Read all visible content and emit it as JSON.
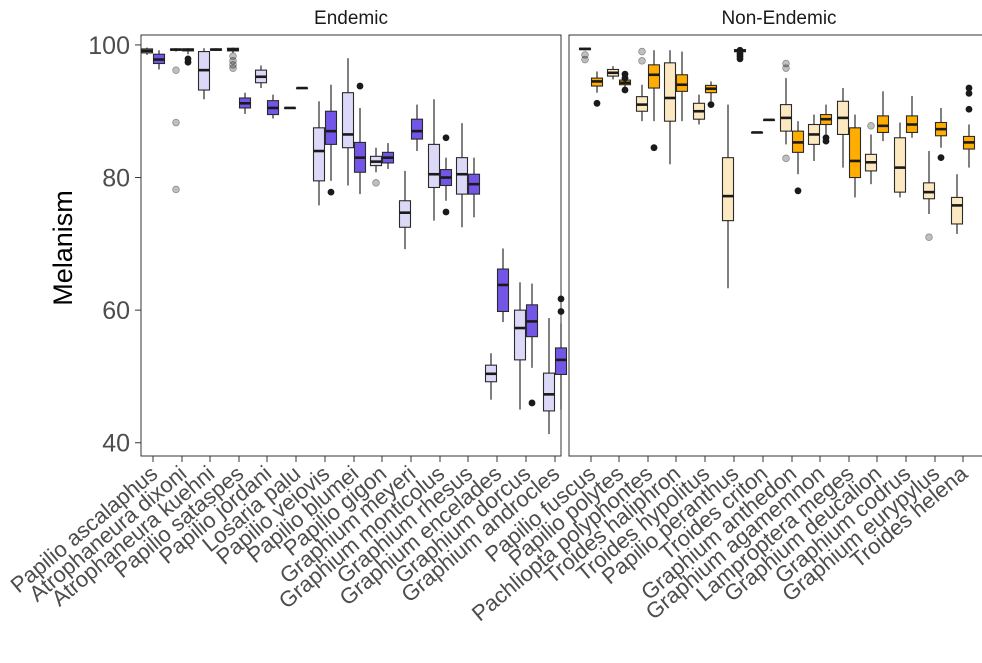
{
  "chart_data": {
    "type": "boxplot",
    "ylabel": "Melanism",
    "xlabel": "",
    "ylim": [
      38,
      101.5
    ],
    "y_ticks": [
      40,
      60,
      80,
      100
    ],
    "grid": false,
    "legend": "none",
    "panel_titles": [
      "Endemic",
      "Non-Endemic"
    ],
    "colors": {
      "endemic_light": "#dcd9f8",
      "endemic_dark": "#7356e8",
      "nonendemic_light": "#fde9c1",
      "nonendemic_dark": "#ffad00"
    },
    "panels": [
      {
        "title": "Endemic",
        "categories": [
          "Papilio ascalaphus",
          "Atrophaneura dixoni",
          "Atrophaneura kuehni",
          "Papilio sataspes",
          "Papilio jordani",
          "Losaria palu",
          "Papilio veiovis",
          "Papilio blumei",
          "Papilio gigon",
          "Graphium meyeri",
          "Graphium monticolus",
          "Graphium rhesus",
          "Graphium encelades",
          "Graphium dorcus",
          "Graphium androcles"
        ],
        "boxes": [
          {
            "category_index": 0,
            "group": "light",
            "q1": 98.8,
            "median": 99.1,
            "q3": 99.4,
            "whisker_low": 98.5,
            "whisker_high": 99.6,
            "outliers": []
          },
          {
            "category_index": 0,
            "group": "dark",
            "q1": 97.2,
            "median": 97.8,
            "q3": 98.6,
            "whisker_low": 96.3,
            "whisker_high": 99.2,
            "outliers": []
          },
          {
            "category_index": 1,
            "group": "light",
            "q1": 99.2,
            "median": 99.3,
            "q3": 99.4,
            "whisker_low": 99.0,
            "whisker_high": 99.5,
            "outliers": [
              96.2,
              88.3,
              78.2
            ]
          },
          {
            "category_index": 1,
            "group": "dark",
            "q1": 99.1,
            "median": 99.3,
            "q3": 99.4,
            "whisker_low": 98.6,
            "whisker_high": 99.5,
            "outliers": [
              97.9,
              97.4
            ]
          },
          {
            "category_index": 2,
            "group": "light",
            "q1": 93.2,
            "median": 96.2,
            "q3": 99.0,
            "whisker_low": 91.8,
            "whisker_high": 99.5,
            "outliers": []
          },
          {
            "category_index": 2,
            "group": "dark",
            "q1": 99.2,
            "median": 99.3,
            "q3": 99.4,
            "whisker_low": 99.1,
            "whisker_high": 99.5,
            "outliers": []
          },
          {
            "category_index": 3,
            "group": "light",
            "q1": 99.1,
            "median": 99.3,
            "q3": 99.5,
            "whisker_low": 98.8,
            "whisker_high": 99.6,
            "outliers": [
              98.3,
              97.6,
              97.0,
              96.5
            ]
          },
          {
            "category_index": 3,
            "group": "dark",
            "q1": 90.5,
            "median": 91.2,
            "q3": 92.0,
            "whisker_low": 89.6,
            "whisker_high": 92.8,
            "outliers": []
          },
          {
            "category_index": 4,
            "group": "light",
            "q1": 94.3,
            "median": 95.2,
            "q3": 96.2,
            "whisker_low": 93.5,
            "whisker_high": 96.9,
            "outliers": []
          },
          {
            "category_index": 4,
            "group": "dark",
            "q1": 89.5,
            "median": 90.5,
            "q3": 91.6,
            "whisker_low": 88.9,
            "whisker_high": 92.5,
            "outliers": []
          },
          {
            "category_index": 5,
            "group": "light",
            "q1": 90.5,
            "median": 90.5,
            "q3": 90.5,
            "whisker_low": 90.5,
            "whisker_high": 90.5,
            "outliers": []
          },
          {
            "category_index": 5,
            "group": "dark",
            "q1": 93.5,
            "median": 93.5,
            "q3": 93.5,
            "whisker_low": 93.5,
            "whisker_high": 93.5,
            "outliers": []
          },
          {
            "category_index": 6,
            "group": "light",
            "q1": 79.5,
            "median": 84.0,
            "q3": 87.5,
            "whisker_low": 75.8,
            "whisker_high": 91.5,
            "outliers": []
          },
          {
            "category_index": 6,
            "group": "dark",
            "q1": 85.0,
            "median": 87.0,
            "q3": 90.0,
            "whisker_low": 79.5,
            "whisker_high": 94.0,
            "outliers": [
              77.8
            ]
          },
          {
            "category_index": 7,
            "group": "light",
            "q1": 84.5,
            "median": 86.5,
            "q3": 92.8,
            "whisker_low": 78.8,
            "whisker_high": 98.0,
            "outliers": []
          },
          {
            "category_index": 7,
            "group": "dark",
            "q1": 80.8,
            "median": 83.0,
            "q3": 85.3,
            "whisker_low": 77.5,
            "whisker_high": 90.5,
            "outliers": [
              93.8
            ]
          },
          {
            "category_index": 8,
            "group": "light",
            "q1": 81.8,
            "median": 82.4,
            "q3": 83.2,
            "whisker_low": 80.8,
            "whisker_high": 84.5,
            "outliers": [
              79.2
            ]
          },
          {
            "category_index": 8,
            "group": "dark",
            "q1": 82.2,
            "median": 83.0,
            "q3": 83.8,
            "whisker_low": 81.3,
            "whisker_high": 85.2,
            "outliers": []
          },
          {
            "category_index": 9,
            "group": "light",
            "q1": 72.5,
            "median": 74.7,
            "q3": 76.5,
            "whisker_low": 69.2,
            "whisker_high": 81.0,
            "outliers": []
          },
          {
            "category_index": 9,
            "group": "dark",
            "q1": 85.8,
            "median": 87.0,
            "q3": 88.8,
            "whisker_low": 84.0,
            "whisker_high": 91.0,
            "outliers": []
          },
          {
            "category_index": 10,
            "group": "light",
            "q1": 78.5,
            "median": 80.5,
            "q3": 85.0,
            "whisker_low": 73.5,
            "whisker_high": 91.8,
            "outliers": []
          },
          {
            "category_index": 10,
            "group": "dark",
            "q1": 78.8,
            "median": 80.0,
            "q3": 81.2,
            "whisker_low": 76.5,
            "whisker_high": 83.0,
            "outliers": [
              86.0,
              74.8
            ]
          },
          {
            "category_index": 11,
            "group": "light",
            "q1": 77.5,
            "median": 80.5,
            "q3": 83.0,
            "whisker_low": 72.5,
            "whisker_high": 88.2,
            "outliers": []
          },
          {
            "category_index": 11,
            "group": "dark",
            "q1": 77.5,
            "median": 79.0,
            "q3": 80.5,
            "whisker_low": 74.0,
            "whisker_high": 83.0,
            "outliers": []
          },
          {
            "category_index": 12,
            "group": "light",
            "q1": 49.2,
            "median": 50.4,
            "q3": 51.7,
            "whisker_low": 46.5,
            "whisker_high": 53.5,
            "outliers": []
          },
          {
            "category_index": 12,
            "group": "dark",
            "q1": 59.8,
            "median": 63.8,
            "q3": 66.2,
            "whisker_low": 58.2,
            "whisker_high": 69.3,
            "outliers": []
          },
          {
            "category_index": 13,
            "group": "light",
            "q1": 52.5,
            "median": 57.3,
            "q3": 60.0,
            "whisker_low": 45.0,
            "whisker_high": 64.2,
            "outliers": []
          },
          {
            "category_index": 13,
            "group": "dark",
            "q1": 56.0,
            "median": 58.3,
            "q3": 60.8,
            "whisker_low": 51.3,
            "whisker_high": 64.0,
            "outliers": [
              46.0
            ]
          },
          {
            "category_index": 14,
            "group": "light",
            "q1": 44.8,
            "median": 47.3,
            "q3": 50.5,
            "whisker_low": 41.3,
            "whisker_high": 58.8,
            "outliers": []
          },
          {
            "category_index": 14,
            "group": "dark",
            "q1": 50.3,
            "median": 52.5,
            "q3": 54.3,
            "whisker_low": 45.0,
            "whisker_high": 58.0,
            "outliers": [
              61.7,
              59.8
            ]
          }
        ]
      },
      {
        "title": "Non-Endemic",
        "categories": [
          "Papilio fuscus",
          "Papilio polytes",
          "Pachliopta polyphontes",
          "Troides haliphron",
          "Troides hypolitus",
          "Papilio peranthus",
          "Troides criton",
          "Graphium anthedon",
          "Graphium agamemnon",
          "Lamproptera meges",
          "Graphium deucalion",
          "Graphium codrus",
          "Graphium eurypylus",
          "Troides helena"
        ],
        "boxes": [
          {
            "category_index": 0,
            "group": "light",
            "q1": 99.3,
            "median": 99.4,
            "q3": 99.5,
            "whisker_low": 99.2,
            "whisker_high": 99.6,
            "outliers": [
              98.5,
              97.8
            ]
          },
          {
            "category_index": 0,
            "group": "dark",
            "q1": 93.8,
            "median": 94.5,
            "q3": 95.0,
            "whisker_low": 92.8,
            "whisker_high": 96.0,
            "outliers": [
              91.2
            ]
          },
          {
            "category_index": 1,
            "group": "light",
            "q1": 95.3,
            "median": 95.8,
            "q3": 96.3,
            "whisker_low": 94.8,
            "whisker_high": 96.8,
            "outliers": []
          },
          {
            "category_index": 1,
            "group": "dark",
            "q1": 94.0,
            "median": 94.3,
            "q3": 94.7,
            "whisker_low": 93.5,
            "whisker_high": 95.0,
            "outliers": [
              95.6,
              95.0,
              93.2
            ]
          },
          {
            "category_index": 2,
            "group": "light",
            "q1": 90.0,
            "median": 91.0,
            "q3": 92.2,
            "whisker_low": 88.5,
            "whisker_high": 94.0,
            "outliers": [
              99.0,
              97.6
            ]
          },
          {
            "category_index": 2,
            "group": "dark",
            "q1": 93.5,
            "median": 95.5,
            "q3": 97.0,
            "whisker_low": 88.5,
            "whisker_high": 99.2,
            "outliers": [
              84.5
            ]
          },
          {
            "category_index": 3,
            "group": "light",
            "q1": 88.5,
            "median": 92.0,
            "q3": 97.3,
            "whisker_low": 82.0,
            "whisker_high": 99.2,
            "outliers": []
          },
          {
            "category_index": 3,
            "group": "dark",
            "q1": 93.0,
            "median": 94.0,
            "q3": 95.5,
            "whisker_low": 88.5,
            "whisker_high": 99.0,
            "outliers": []
          },
          {
            "category_index": 4,
            "group": "light",
            "q1": 88.8,
            "median": 90.0,
            "q3": 91.2,
            "whisker_low": 88.0,
            "whisker_high": 92.5,
            "outliers": []
          },
          {
            "category_index": 4,
            "group": "dark",
            "q1": 92.8,
            "median": 93.4,
            "q3": 93.9,
            "whisker_low": 91.5,
            "whisker_high": 94.5,
            "outliers": [
              91.0
            ]
          },
          {
            "category_index": 5,
            "group": "light",
            "q1": 73.5,
            "median": 77.2,
            "q3": 83.0,
            "whisker_low": 63.3,
            "whisker_high": 91.0,
            "outliers": []
          },
          {
            "category_index": 5,
            "group": "dark",
            "q1": 99.0,
            "median": 99.1,
            "q3": 99.3,
            "whisker_low": 98.8,
            "whisker_high": 99.4,
            "outliers": [
              99.2,
              98.7,
              98.3,
              97.9
            ]
          },
          {
            "category_index": 6,
            "group": "light",
            "q1": 86.8,
            "median": 86.8,
            "q3": 86.8,
            "whisker_low": 86.8,
            "whisker_high": 86.8,
            "outliers": []
          },
          {
            "category_index": 6,
            "group": "dark",
            "q1": 88.7,
            "median": 88.7,
            "q3": 88.7,
            "whisker_low": 88.7,
            "whisker_high": 88.7,
            "outliers": []
          },
          {
            "category_index": 7,
            "group": "light",
            "q1": 87.0,
            "median": 89.0,
            "q3": 91.0,
            "whisker_low": 85.0,
            "whisker_high": 95.0,
            "outliers": [
              97.2,
              96.5,
              82.9
            ]
          },
          {
            "category_index": 7,
            "group": "dark",
            "q1": 83.8,
            "median": 85.3,
            "q3": 87.0,
            "whisker_low": 80.5,
            "whisker_high": 88.5,
            "outliers": [
              78.0
            ]
          },
          {
            "category_index": 8,
            "group": "light",
            "q1": 85.0,
            "median": 86.5,
            "q3": 88.0,
            "whisker_low": 82.5,
            "whisker_high": 89.5,
            "outliers": []
          },
          {
            "category_index": 8,
            "group": "dark",
            "q1": 88.0,
            "median": 88.8,
            "q3": 89.5,
            "whisker_low": 86.5,
            "whisker_high": 91.0,
            "outliers": [
              86.0,
              85.5
            ]
          },
          {
            "category_index": 9,
            "group": "light",
            "q1": 86.5,
            "median": 89.0,
            "q3": 91.5,
            "whisker_low": 81.5,
            "whisker_high": 93.5,
            "outliers": []
          },
          {
            "category_index": 9,
            "group": "dark",
            "q1": 80.0,
            "median": 82.5,
            "q3": 87.5,
            "whisker_low": 77.0,
            "whisker_high": 89.5,
            "outliers": []
          },
          {
            "category_index": 10,
            "group": "light",
            "q1": 81.0,
            "median": 82.3,
            "q3": 83.5,
            "whisker_low": 79.0,
            "whisker_high": 86.5,
            "outliers": [
              87.8
            ]
          },
          {
            "category_index": 10,
            "group": "dark",
            "q1": 86.8,
            "median": 87.8,
            "q3": 89.3,
            "whisker_low": 85.5,
            "whisker_high": 93.0,
            "outliers": []
          },
          {
            "category_index": 11,
            "group": "light",
            "q1": 77.8,
            "median": 81.5,
            "q3": 86.0,
            "whisker_low": 77.0,
            "whisker_high": 88.3,
            "outliers": []
          },
          {
            "category_index": 11,
            "group": "dark",
            "q1": 86.8,
            "median": 88.0,
            "q3": 89.3,
            "whisker_low": 86.0,
            "whisker_high": 92.3,
            "outliers": []
          },
          {
            "category_index": 12,
            "group": "light",
            "q1": 76.8,
            "median": 77.8,
            "q3": 79.2,
            "whisker_low": 74.5,
            "whisker_high": 84.0,
            "outliers": [
              71.0
            ]
          },
          {
            "category_index": 12,
            "group": "dark",
            "q1": 86.3,
            "median": 87.3,
            "q3": 88.3,
            "whisker_low": 84.5,
            "whisker_high": 90.5,
            "outliers": [
              83.0
            ]
          },
          {
            "category_index": 13,
            "group": "light",
            "q1": 73.0,
            "median": 75.8,
            "q3": 77.0,
            "whisker_low": 71.5,
            "whisker_high": 80.5,
            "outliers": []
          },
          {
            "category_index": 13,
            "group": "dark",
            "q1": 84.3,
            "median": 85.3,
            "q3": 86.2,
            "whisker_low": 81.5,
            "whisker_high": 88.0,
            "outliers": [
              93.5,
              92.7,
              90.3
            ]
          }
        ]
      }
    ]
  }
}
